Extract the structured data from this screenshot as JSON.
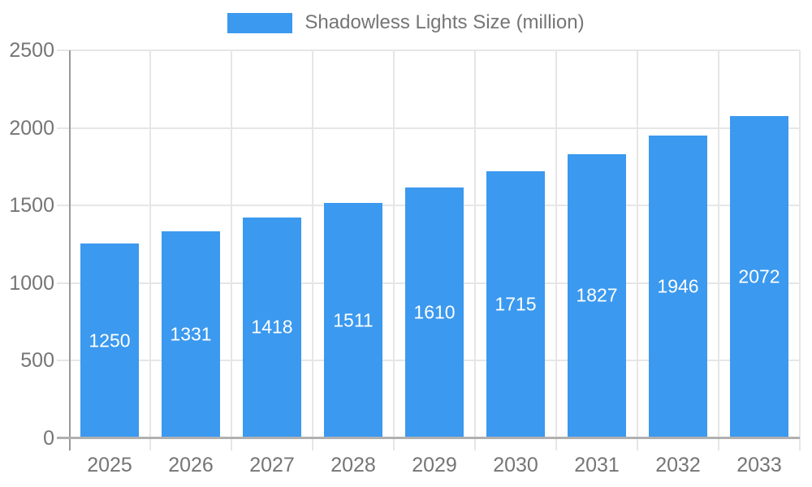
{
  "legend": {
    "label": "Shadowless Lights Size (million)"
  },
  "colors": {
    "bar": "#3b99ef",
    "gridline": "#e6e6e6",
    "y_axis_line": "#999999",
    "x_axis_line": "#b0b0b0",
    "axis_text": "#757575",
    "bar_label_text": "#ffffff"
  },
  "chart_data": {
    "type": "bar",
    "title": "",
    "xlabel": "",
    "ylabel": "",
    "categories": [
      "2025",
      "2026",
      "2027",
      "2028",
      "2029",
      "2030",
      "2031",
      "2032",
      "2033"
    ],
    "values": [
      1250,
      1331,
      1418,
      1511,
      1610,
      1715,
      1827,
      1946,
      2072
    ],
    "series_name": "Shadowless Lights Size (million)",
    "ylim": [
      0,
      2500
    ],
    "yticks": [
      0,
      500,
      1000,
      1500,
      2000,
      2500
    ],
    "grid": true,
    "legend_position": "top-center",
    "bar_label_position": "inside-center"
  }
}
